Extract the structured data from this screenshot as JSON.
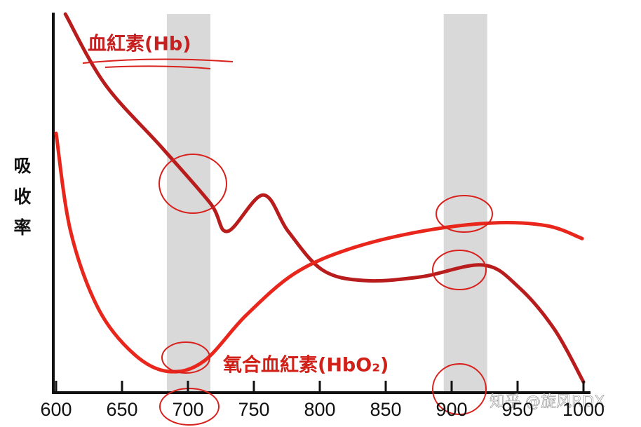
{
  "chart_data": {
    "type": "line",
    "y_label": "吸收率",
    "xlim": [
      600,
      1000
    ],
    "xticks": [
      600,
      650,
      700,
      750,
      800,
      850,
      900,
      950,
      1000
    ],
    "ylim": [
      0,
      100
    ],
    "highlight_bands": [
      [
        684,
        717
      ],
      [
        894,
        927
      ]
    ],
    "series": [
      {
        "name": "血紅素(Hb)",
        "color": "#b81c1c",
        "x": [
          607,
          637,
          680,
          717,
          730,
          757,
          776,
          802,
          834,
          877,
          924,
          951,
          978,
          1000
        ],
        "values": [
          100,
          81.5,
          64.8,
          50,
          42.6,
          52.2,
          42.6,
          32.4,
          29.6,
          30.6,
          33.7,
          27.8,
          16.7,
          2.8
        ]
      },
      {
        "name": "氧合血紅素(HbO₂)",
        "color": "#e8261c",
        "x": [
          600,
          611,
          632,
          659,
          685,
          712,
          744,
          781,
          823,
          877,
          930,
          972,
          999
        ],
        "values": [
          68.5,
          42.6,
          22.2,
          10.2,
          5.6,
          8.3,
          20.4,
          31.5,
          38,
          42.6,
          44.8,
          44.1,
          40.7
        ]
      }
    ],
    "watermark": "知乎 @旋风RDX"
  }
}
